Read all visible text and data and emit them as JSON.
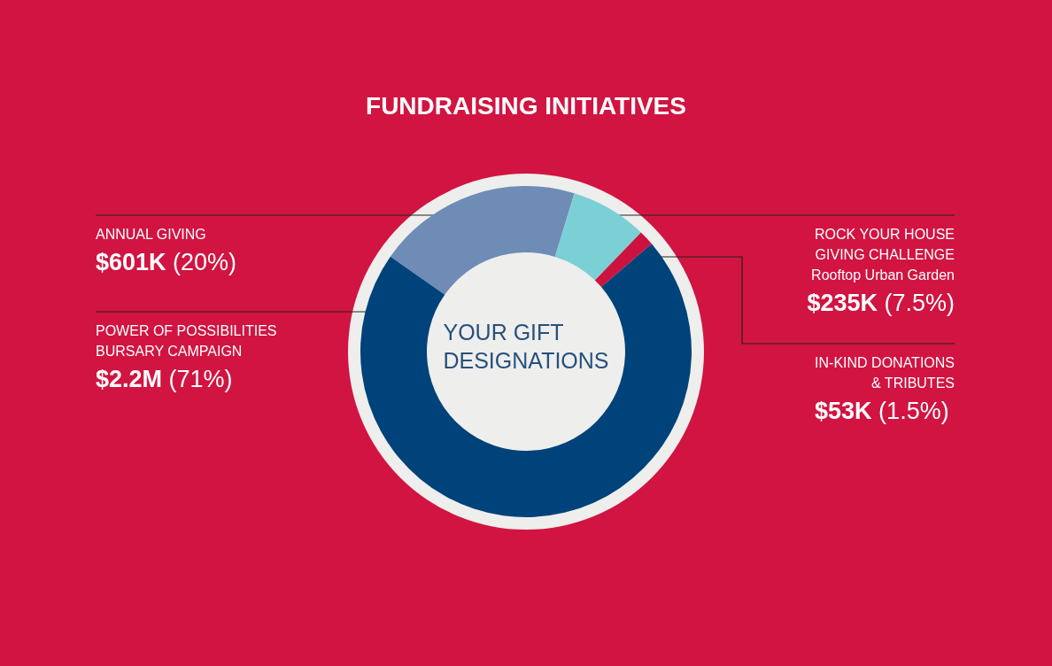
{
  "chart_data": {
    "type": "donut",
    "title": "FUNDRAISING INITIATIVES",
    "categories": [
      "ANNUAL GIVING",
      "ROCK YOUR HOUSE\nGIVING CHALLENGE\nRooftop Urban Garden",
      "IN-KIND DONATIONS\n& TRIBUTES",
      "POWER OF POSSIBILITIES\nBURSARY CAMPAIGN"
    ],
    "values": [
      20,
      7.5,
      1.5,
      71
    ],
    "colors": [
      "#6e8cb6",
      "#7bd0d6",
      "#cc1340",
      "#00427a"
    ],
    "value_labels": [
      "$601K (20%)",
      "$235K (7.5%)",
      "$53K (1.5%)",
      "$2.2M (71%)"
    ],
    "annotations": [
      "YOUR GIFT\nDESIGNATIONS"
    ]
  }
}
